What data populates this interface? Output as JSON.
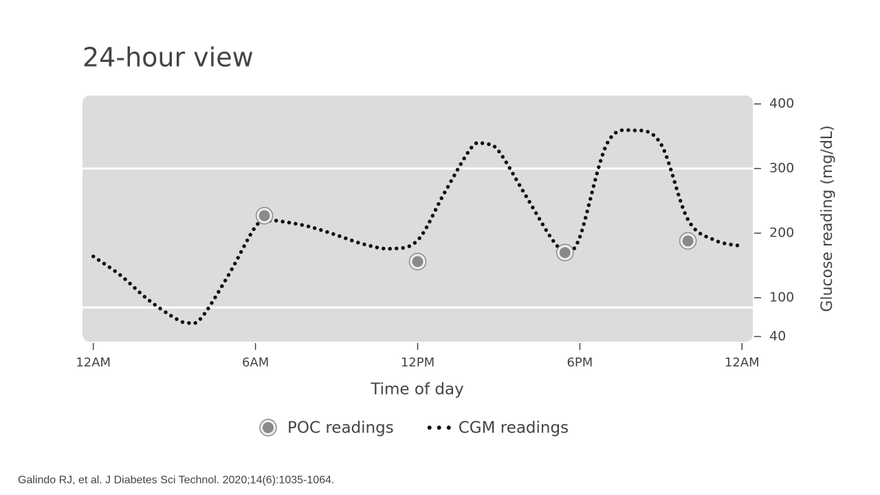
{
  "chart_data": {
    "type": "line",
    "title": "24-hour view",
    "x_label": "Time of day",
    "y_label": "Glucose reading (mg/dL)",
    "xlim": [
      -0.4,
      24.4
    ],
    "xticks": [
      {
        "value": 0,
        "label": "12AM"
      },
      {
        "value": 6,
        "label": "6AM"
      },
      {
        "value": 12,
        "label": "12PM"
      },
      {
        "value": 18,
        "label": "6PM"
      },
      {
        "value": 24,
        "label": "12AM"
      }
    ],
    "ylim": [
      32,
      413
    ],
    "yticks": [
      40,
      100,
      200,
      300,
      400
    ],
    "reference_lines": [
      85,
      300
    ],
    "series": [
      {
        "name": "POC readings",
        "kind": "points",
        "color": "#8a8a8a",
        "x": [
          6.33,
          12,
          17.45,
          22
        ],
        "values": [
          227,
          156,
          170,
          188
        ]
      },
      {
        "name": "CGM readings",
        "kind": "dotted",
        "color": "#111111",
        "x": [
          0,
          1,
          2,
          3,
          3.5,
          4,
          5,
          6,
          6.5,
          7,
          8,
          9,
          10,
          11,
          12,
          13,
          14,
          14.5,
          15,
          16,
          17,
          17.5,
          18,
          19,
          20,
          21,
          22,
          23,
          24
        ],
        "values": [
          164,
          135,
          98,
          69,
          61,
          69,
          135,
          210,
          219,
          218,
          210,
          197,
          183,
          176,
          189,
          263,
          333,
          338,
          327,
          258,
          189,
          173,
          194,
          338,
          359,
          338,
          221,
          189,
          180
        ]
      }
    ],
    "source": "Galindo RJ, et al. J Diabetes Sci Technol. 2020;14(6):1035-1064."
  }
}
